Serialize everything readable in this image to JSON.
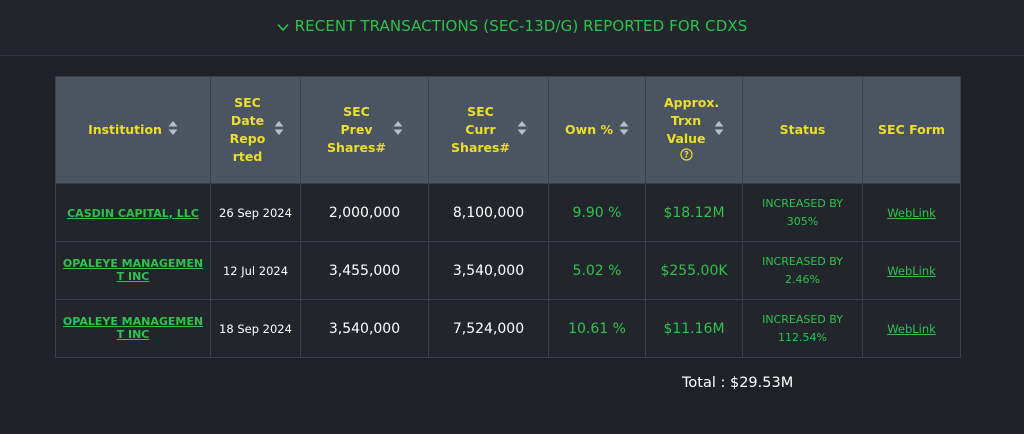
{
  "header": {
    "title": "RECENT TRANSACTIONS (SEC-13D/G) REPORTED FOR CDXS"
  },
  "table": {
    "columns": [
      "Institution",
      "SEC Date Reported",
      "SEC Prev Shares#",
      "SEC Curr Shares#",
      "Own %",
      "Approx. Trxn Value",
      "Status",
      "SEC Form"
    ],
    "rows": [
      [
        "CASDIN CAPITAL, LLC",
        "26 Sep 2024",
        "2,000,000",
        "8,100,000",
        "9.90 %",
        "$18.12M",
        "INCREASED BY 305%",
        "WebLink"
      ],
      [
        "OPALEYE MANAGEMENT INC",
        "12 Jul 2024",
        "3,455,000",
        "3,540,000",
        "5.02 %",
        "$255.00K",
        "INCREASED BY 2.46%",
        "WebLink"
      ],
      [
        "OPALEYE MANAGEMENT INC",
        "18 Sep 2024",
        "3,540,000",
        "7,524,000",
        "10.61 %",
        "$11.16M",
        "INCREASED BY 112.54%",
        "WebLink"
      ]
    ]
  },
  "total": "Total : $29.53M"
}
